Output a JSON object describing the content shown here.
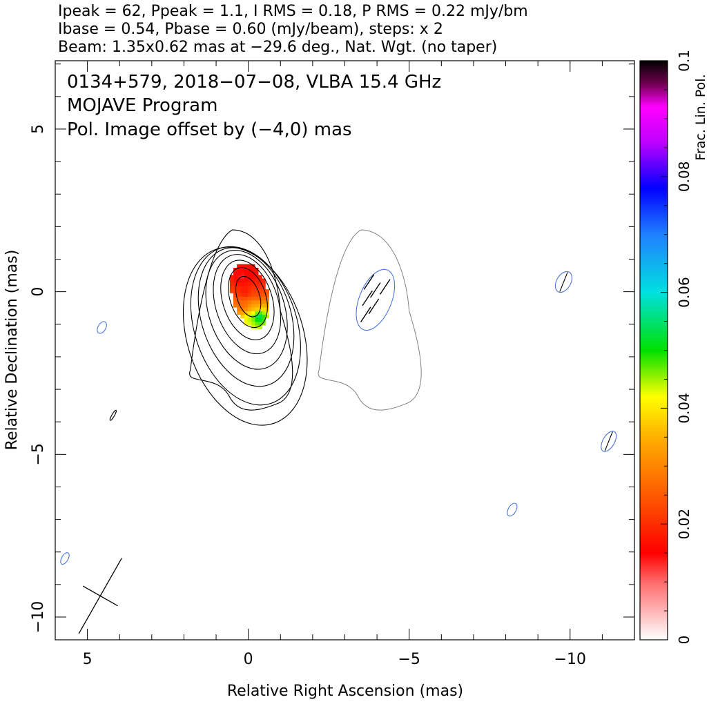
{
  "header": {
    "line1": "Ipeak = 62, Ppeak = 1.1, I RMS = 0.18, P RMS = 0.22 mJy/bm",
    "line2": "Ibase = 0.54, Pbase = 0.60 (mJy/beam), steps: x 2",
    "line3": "Beam: 1.35x0.62 mas at −29.6 deg., Nat. Wgt. (no taper)"
  },
  "annotations": {
    "source": "0134+579, 2018−07−08, VLBA 15.4 GHz",
    "program": "MOJAVE Program",
    "offset_note": "Pol. Image offset by (−4,0) mas"
  },
  "colors": {
    "offset_note": "#4a74d9",
    "pol_contour": "#4a74d9",
    "stokes_i_contour": "#000000",
    "offset_i_contour": "#808080"
  },
  "chart_data": {
    "type": "heatmap",
    "xlabel": "Relative Right Ascension (mas)",
    "ylabel": "Relative Declination (mas)",
    "xlim": [
      6,
      -12
    ],
    "ylim": [
      -10.7,
      7.1
    ],
    "xticks": [
      5,
      0,
      -5,
      -10
    ],
    "xtick_labels": [
      "5",
      "0",
      "−5",
      "−10"
    ],
    "yticks": [
      5,
      0,
      -5,
      -10
    ],
    "ytick_labels": [
      "5",
      "0",
      "−5",
      "−10"
    ],
    "colorbar": {
      "label": "Frac. Lin. Pol.",
      "range": [
        0,
        0.1
      ],
      "ticks": [
        0,
        0.02,
        0.04,
        0.06,
        0.08,
        0.1
      ],
      "tick_labels": [
        "0",
        "0.02",
        "0.04",
        "0.06",
        "0.08",
        "0.1"
      ]
    },
    "beam": {
      "major_mas": 1.35,
      "minor_mas": 0.62,
      "pa_deg": -29.6,
      "center": [
        4.6,
        -9.35
      ]
    },
    "contours": {
      "base_mjy_per_beam": 0.54,
      "step_factor": 2,
      "peak_mjy_per_beam": 62,
      "levels_drawn": 8
    },
    "pol_offset_mas": [
      -4,
      0
    ],
    "pol_peak_mjy_per_beam": 1.1,
    "frac_pol_region": [
      {
        "ra": 0.2,
        "dec": 0.45,
        "m": 0.012
      },
      {
        "ra": -0.1,
        "dec": 0.55,
        "m": 0.014
      },
      {
        "ra": -0.35,
        "dec": 0.3,
        "m": 0.018
      },
      {
        "ra": 0.1,
        "dec": 0.0,
        "m": 0.016
      },
      {
        "ra": -0.25,
        "dec": -0.05,
        "m": 0.022
      },
      {
        "ra": 0.15,
        "dec": -0.45,
        "m": 0.026
      },
      {
        "ra": -0.2,
        "dec": -0.45,
        "m": 0.034
      },
      {
        "ra": 0.0,
        "dec": -0.8,
        "m": 0.045
      },
      {
        "ra": -0.3,
        "dec": -0.75,
        "m": 0.06
      }
    ],
    "evpa_ticks": [
      {
        "ra": -3.75,
        "dec": 0.3
      },
      {
        "ra": -3.95,
        "dec": 0.05
      },
      {
        "ra": -3.7,
        "dec": -0.2
      },
      {
        "ra": -3.9,
        "dec": -0.45
      },
      {
        "ra": -3.65,
        "dec": -0.7
      },
      {
        "ra": -4.25,
        "dec": 0.15
      }
    ]
  }
}
